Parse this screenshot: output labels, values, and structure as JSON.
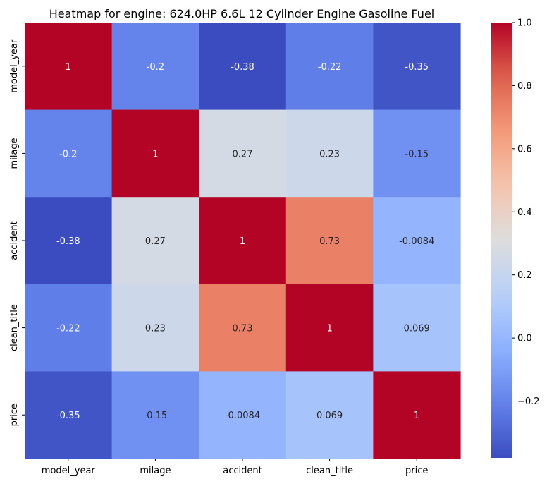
{
  "chart_data": {
    "type": "heatmap",
    "title": "Heatmap for engine: 624.0HP 6.6L 12 Cylinder Engine Gasoline Fuel",
    "row_labels": [
      "model_year",
      "milage",
      "accident",
      "clean_title",
      "price"
    ],
    "col_labels": [
      "model_year",
      "milage",
      "accident",
      "clean_title",
      "price"
    ],
    "values": [
      [
        1,
        -0.2,
        -0.38,
        -0.22,
        -0.35
      ],
      [
        -0.2,
        1,
        0.27,
        0.23,
        -0.15
      ],
      [
        -0.38,
        0.27,
        1,
        0.73,
        -0.0084
      ],
      [
        -0.22,
        0.23,
        0.73,
        1,
        0.069
      ],
      [
        -0.35,
        -0.15,
        -0.0084,
        0.069,
        1
      ]
    ],
    "cell_labels": [
      [
        "1",
        "-0.2",
        "-0.38",
        "-0.22",
        "-0.35"
      ],
      [
        "-0.2",
        "1",
        "0.27",
        "0.23",
        "-0.15"
      ],
      [
        "-0.38",
        "0.27",
        "1",
        "0.73",
        "-0.0084"
      ],
      [
        "-0.22",
        "0.23",
        "0.73",
        "1",
        "0.069"
      ],
      [
        "-0.35",
        "-0.15",
        "-0.0084",
        "0.069",
        "1"
      ]
    ],
    "colormap": "coolwarm",
    "vmin": -0.38,
    "vmax": 1.0,
    "colorbar": {
      "ticks": [
        -0.2,
        0.0,
        0.2,
        0.4,
        0.6,
        0.8,
        1.0
      ],
      "tick_labels": [
        "−0.2",
        "0.0",
        "0.2",
        "0.4",
        "0.6",
        "0.8",
        "1.0"
      ],
      "position": "right"
    },
    "grid": false
  }
}
